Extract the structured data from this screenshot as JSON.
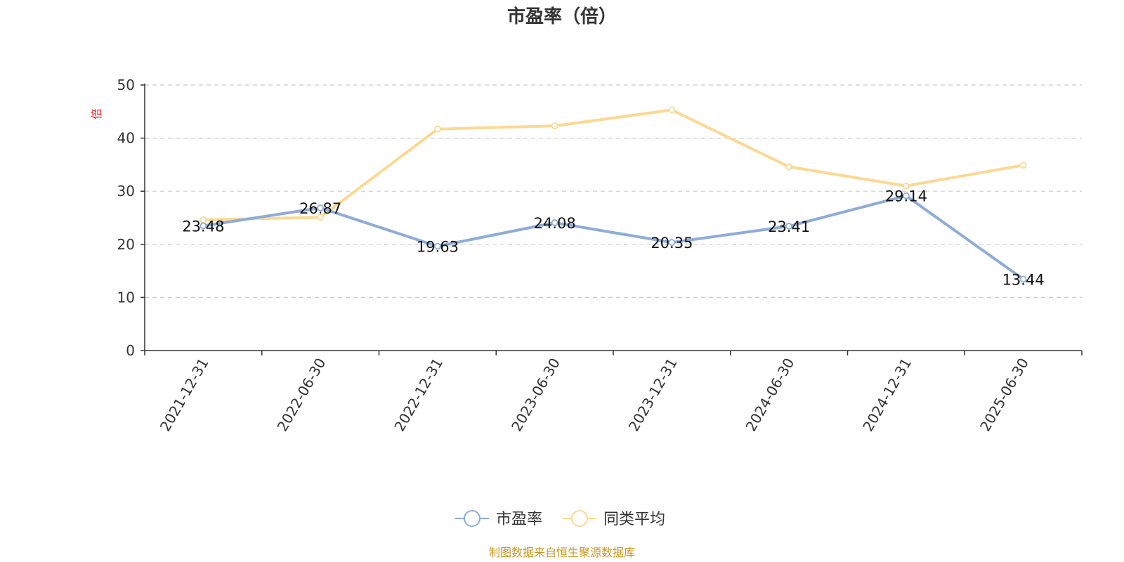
{
  "chart_data": {
    "type": "line",
    "title": "市盈率（倍）",
    "ylabel": "倍",
    "ylim": [
      0,
      50
    ],
    "yticks": [
      0,
      10,
      20,
      30,
      40,
      50
    ],
    "grid": true,
    "legend_position": "bottom-center",
    "categories": [
      "2021-12-31",
      "2022-06-30",
      "2022-12-31",
      "2023-06-30",
      "2023-12-31",
      "2024-06-30",
      "2024-12-31",
      "2025-06-30"
    ],
    "series": [
      {
        "name": "市盈率",
        "color": "#8eacd8",
        "values": [
          23.48,
          26.87,
          19.63,
          24.08,
          20.35,
          23.41,
          29.14,
          13.44
        ],
        "labels": [
          "23.48",
          "26.87",
          "19.63",
          "24.08",
          "20.35",
          "23.41",
          "29.14",
          "13.44"
        ]
      },
      {
        "name": "同类平均",
        "color": "#fbd993",
        "values": [
          24.6,
          25.1,
          41.7,
          42.3,
          45.3,
          34.6,
          31.0,
          34.9
        ]
      }
    ]
  },
  "source_text": "制图数据来自恒生聚源数据库"
}
